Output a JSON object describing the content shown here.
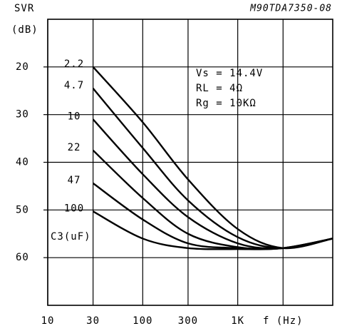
{
  "chart_data": {
    "type": "line",
    "code": "M90TDA7350-08",
    "y_label_line1": "SVR",
    "y_label_line2": "(dB)",
    "legend_title": "C3(uF)",
    "annotations": [
      "Vs = 14.4V",
      "RL = 4Ω",
      "Rg = 10KΩ"
    ],
    "x": [
      30,
      100,
      300,
      1000,
      3000,
      10000
    ],
    "xlim": [
      10,
      10000
    ],
    "xscale": "log",
    "xticks": [
      10,
      30,
      100,
      300,
      {
        "value": 1000,
        "label": "1K"
      },
      {
        "value": 3000,
        "label": "f (Hz)"
      }
    ],
    "ylim": [
      10,
      70
    ],
    "yinverted": true,
    "yticks": [
      20,
      30,
      40,
      50,
      60
    ],
    "grid": true,
    "series": [
      {
        "name": "2.2",
        "color": "#000000",
        "values": [
          20,
          31.6,
          43.6,
          54,
          58,
          56
        ]
      },
      {
        "name": "4.7",
        "color": "#000000",
        "values": [
          24.5,
          37,
          48,
          55.7,
          58,
          56
        ]
      },
      {
        "name": "10",
        "color": "#000000",
        "values": [
          31,
          42.5,
          51.5,
          57,
          58,
          56
        ]
      },
      {
        "name": "22",
        "color": "#000000",
        "values": [
          37.5,
          47.5,
          55,
          57.8,
          58,
          56
        ]
      },
      {
        "name": "47",
        "color": "#000000",
        "values": [
          44.4,
          52,
          57,
          58,
          58,
          56
        ]
      },
      {
        "name": "100",
        "color": "#000000",
        "values": [
          50.3,
          56,
          58,
          58.2,
          58,
          56
        ]
      }
    ]
  }
}
